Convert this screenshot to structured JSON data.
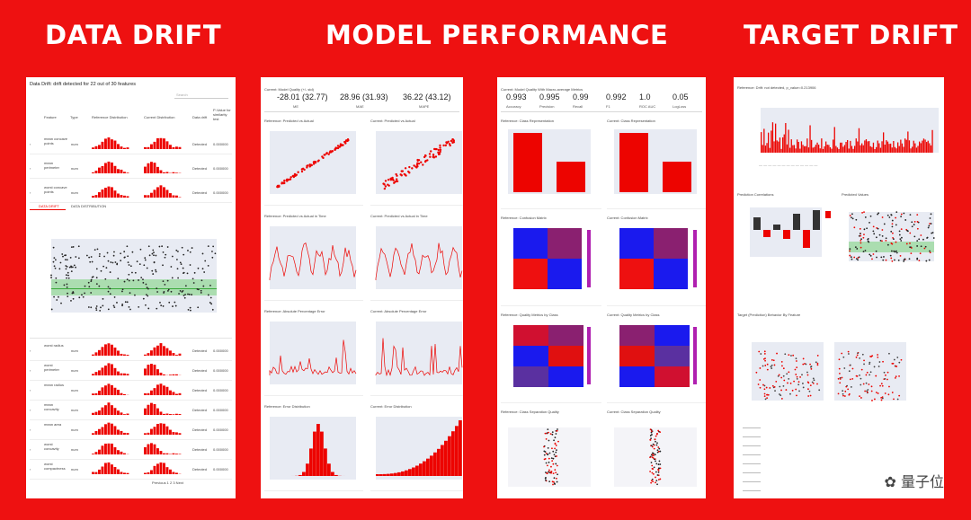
{
  "headings": {
    "data_drift": "DATA DRIFT",
    "model_performance": "MODEL PERFORMANCE",
    "target_drift": "TARGET DRIFT"
  },
  "watermark": "量子位",
  "colors": {
    "background": "#ee1111",
    "accent": "#ed0400",
    "plot_bg": "#e8ebf3",
    "green_band": "#8fd58f"
  },
  "data_drift": {
    "title": "Data Drift: drift detected for 22 out of 30 features",
    "search_placeholder": "Search",
    "columns": [
      "Feature",
      "Type",
      "Reference Distribution",
      "Current Distribution",
      "Data drift",
      "P-Value for similarity test"
    ],
    "tabs": [
      "DATA DRIFT",
      "DATA DISTRIBUTION"
    ],
    "rows_top": [
      {
        "feature": "mean concave points",
        "type": "num",
        "drift": "Detected",
        "pvalue": "0.000000"
      },
      {
        "feature": "mean perimeter",
        "type": "num",
        "drift": "Detected",
        "pvalue": "0.000000"
      },
      {
        "feature": "worst concave points",
        "type": "num",
        "drift": "Detected",
        "pvalue": "0.000000"
      }
    ],
    "rows_bottom": [
      {
        "feature": "worst radius",
        "type": "num",
        "drift": "Detected",
        "pvalue": "0.000000"
      },
      {
        "feature": "worst perimeter",
        "type": "num",
        "drift": "Detected",
        "pvalue": "0.000000"
      },
      {
        "feature": "mean radius",
        "type": "num",
        "drift": "Detected",
        "pvalue": "0.000000"
      },
      {
        "feature": "mean concavity",
        "type": "num",
        "drift": "Detected",
        "pvalue": "0.000000"
      },
      {
        "feature": "mean area",
        "type": "num",
        "drift": "Detected",
        "pvalue": "0.000000"
      },
      {
        "feature": "worst concavity",
        "type": "num",
        "drift": "Detected",
        "pvalue": "0.000000"
      },
      {
        "feature": "worst compactness",
        "type": "num",
        "drift": "Detected",
        "pvalue": "0.000000"
      }
    ],
    "pagination": "Previous 1 2 3 Next"
  },
  "model_performance": {
    "header": "Current: Model Quality (+/- std)",
    "metrics": [
      {
        "value": "-28.01 (32.77)",
        "label": "ME"
      },
      {
        "value": "28.96 (31.93)",
        "label": "MAE"
      },
      {
        "value": "36.22 (43.12)",
        "label": "MAPE"
      }
    ],
    "plots": [
      "Reference: Predicted vs Actual",
      "Current: Predicted vs Actual",
      "Reference: Predicted vs Actual in Time",
      "Current: Predicted vs Actual in Time",
      "Reference: Absolute Percentage Error",
      "Current: Absolute Percentage Error",
      "Reference: Error Distribution",
      "Current: Error Distribution"
    ]
  },
  "classification": {
    "header": "Current: Model Quality With Macro-average Metrics",
    "metrics": [
      {
        "value": "0.993",
        "label": "Accuracy"
      },
      {
        "value": "0.995",
        "label": "Precision"
      },
      {
        "value": "0.99",
        "label": "Recall"
      },
      {
        "value": "0.992",
        "label": "F1"
      },
      {
        "value": "1.0",
        "label": "ROC AUC"
      },
      {
        "value": "0.05",
        "label": "LogLoss"
      }
    ],
    "plots": [
      "Reference: Class Representation",
      "Current: Class Representation",
      "Reference: Confusion Matrix",
      "Current: Confusion Matrix",
      "Reference: Quality Metrics by Class",
      "Current: Quality Metrics by Class",
      "Reference: Class Separation Quality",
      "Current: Class Separation Quality"
    ]
  },
  "target_drift": {
    "header": "Reference: Drift: not detected, p_value=0.213906",
    "sections": [
      "Prediction Correlations",
      "Predicted Values",
      "Target (Prediction) Behavior By Feature"
    ]
  }
}
